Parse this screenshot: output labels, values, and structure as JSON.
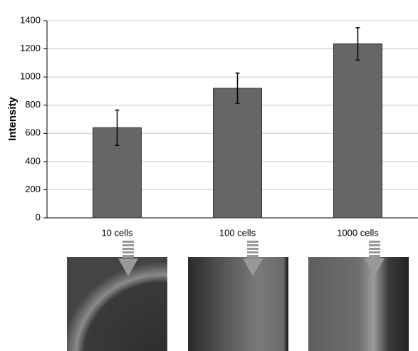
{
  "chart_data": {
    "type": "bar",
    "y_label": "Intensity",
    "categories": [
      "10 cells",
      "100 cells",
      "1000 cells"
    ],
    "values": [
      640,
      920,
      1235
    ],
    "errors": [
      125,
      108,
      115
    ],
    "color": "#666666",
    "ylim": [
      0,
      1400
    ],
    "yticks": [
      0,
      200,
      400,
      600,
      800,
      1000,
      1200,
      1400
    ],
    "grid": true
  }
}
